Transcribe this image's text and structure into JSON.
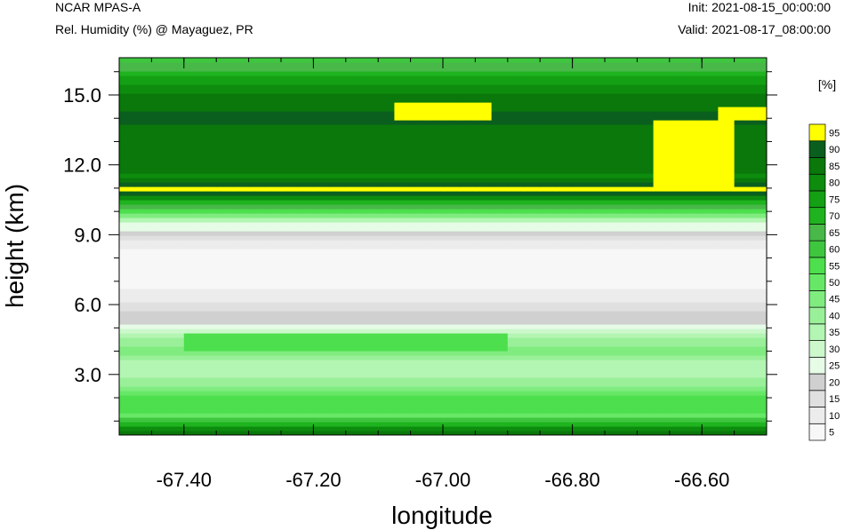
{
  "header": {
    "model": "NCAR MPAS-A",
    "field": "Rel. Humidity (%) @ Mayaguez, PR",
    "init": "Init: 2021-08-15_00:00:00",
    "valid": "Valid: 2021-08-17_08:00:00"
  },
  "chart_data": {
    "type": "heatmap",
    "xlabel": "longitude",
    "ylabel": "height (km)",
    "xlim": [
      -67.5,
      -66.5
    ],
    "ylim": [
      0.4,
      16.6
    ],
    "x_ticks": [
      -67.4,
      -67.2,
      -67.0,
      -66.8,
      -66.6
    ],
    "x_tick_labels": [
      "-67.40",
      "-67.20",
      "-67.00",
      "-66.80",
      "-66.60"
    ],
    "y_ticks": [
      3.0,
      6.0,
      9.0,
      12.0,
      15.0
    ],
    "y_tick_labels": [
      "3.0",
      "6.0",
      "9.0",
      "12.0",
      "15.0"
    ],
    "colorbar": {
      "unit_label": "[%]",
      "levels": [
        "5",
        "10",
        "15",
        "20",
        "25",
        "30",
        "35",
        "40",
        "45",
        "50",
        "55",
        "60",
        "65",
        "70",
        "75",
        "80",
        "85",
        "90",
        "95"
      ],
      "colors": [
        "#f7f7f7",
        "#ececec",
        "#e0e0e0",
        "#d0d0d0",
        "#e6fce6",
        "#ccf8cc",
        "#b3f5b3",
        "#99f099",
        "#80ec80",
        "#66e866",
        "#4ddf4d",
        "#3fc63f",
        "#48b848",
        "#1fb41f",
        "#14a014",
        "#0d8c0d",
        "#0a780a",
        "#0a5f1e",
        "#ffff00"
      ]
    },
    "profile": {
      "heights_km": [
        0.4,
        0.8,
        1.2,
        1.6,
        2.0,
        2.5,
        3.0,
        3.5,
        4.0,
        4.5,
        5.0,
        5.5,
        6.0,
        6.5,
        7.0,
        7.5,
        8.0,
        8.5,
        9.0,
        9.5,
        10.0,
        10.5,
        11.0,
        11.5,
        12.0,
        12.5,
        13.0,
        13.5,
        14.0,
        14.5,
        15.0,
        15.5,
        16.0,
        16.6
      ],
      "rh_pct": [
        85,
        72,
        48,
        55,
        52,
        38,
        34,
        30,
        42,
        36,
        22,
        18,
        12,
        6,
        3,
        3,
        3,
        6,
        14,
        26,
        52,
        72,
        96,
        78,
        84,
        82,
        80,
        82,
        88,
        84,
        80,
        74,
        66,
        58
      ]
    },
    "features": [
      {
        "name": "upper-moist-core",
        "lon": [
          -67.08,
          -66.92
        ],
        "height_km": [
          13.9,
          14.7
        ],
        "rh_pct": 96
      },
      {
        "name": "east-dry-notch",
        "lon": [
          -66.68,
          -66.56
        ],
        "height_km": [
          11.0,
          14.0
        ],
        "rh_pct": 91
      },
      {
        "name": "east-moist-core",
        "lon": [
          -66.57,
          -66.5
        ],
        "height_km": [
          14.0,
          14.5
        ],
        "rh_pct": 96
      },
      {
        "name": "midlevel-moist-band",
        "lon": [
          -67.4,
          -66.9
        ],
        "height_km": [
          4.0,
          4.8
        ],
        "rh_pct": 52
      }
    ]
  }
}
